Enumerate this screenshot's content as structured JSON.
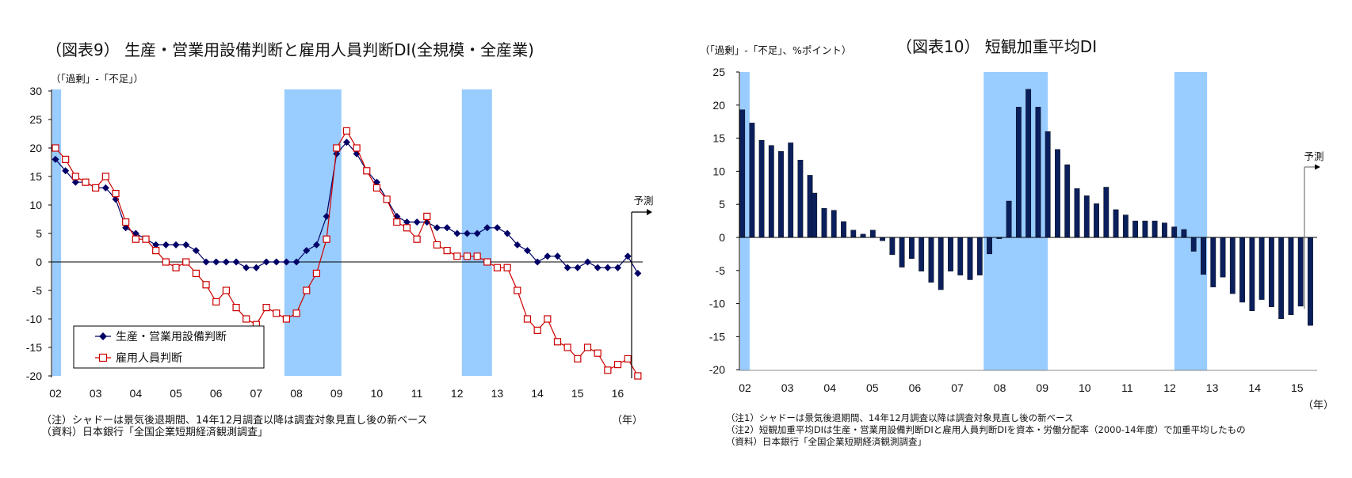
{
  "chart_data": [
    {
      "type": "line",
      "title": "（図表9） 生産・営業用設備判断と雇用人員判断DI(全規模・全産業)",
      "ylabel": "（「過剰」-「不足」）",
      "xlabel": "（年）",
      "ylim": [
        -20,
        30
      ],
      "yticks": [
        "30",
        "25",
        "20",
        "15",
        "10",
        "5",
        "0",
        "-5",
        "-10",
        "-15",
        "-20"
      ],
      "xticks": [
        "02",
        "03",
        "04",
        "05",
        "06",
        "07",
        "08",
        "09",
        "10",
        "11",
        "12",
        "13",
        "14",
        "15",
        "16"
      ],
      "x_start": "2002Q1",
      "frequency": "quarterly",
      "last_point_is_forecast": true,
      "forecast_label": "予測",
      "grid": false,
      "legend": "bottom-left",
      "shade_color": "#99ccff",
      "shaded_periods": [
        [
          2001.92,
          2002.14
        ],
        [
          2007.7,
          2009.12
        ],
        [
          2012.12,
          2012.87
        ]
      ],
      "series": [
        {
          "name": "生産・営業用設備判断",
          "color": "#000066",
          "marker": "diamond",
          "values": [
            18,
            16,
            14,
            14,
            13,
            13,
            11,
            6,
            5,
            4,
            3,
            3,
            3,
            3,
            2,
            0,
            0,
            0,
            0,
            -1,
            -1,
            0,
            0,
            0,
            0,
            2,
            3,
            8,
            19,
            21,
            19,
            16,
            14,
            11,
            8,
            7,
            7,
            7,
            6,
            6,
            5,
            5,
            5,
            6,
            6,
            5,
            3,
            2,
            0,
            1,
            1,
            -1,
            -1,
            0,
            -1,
            -1,
            -1,
            1,
            -2
          ]
        },
        {
          "name": "雇用人員判断",
          "color": "#cc0000",
          "marker": "open-square",
          "values": [
            20,
            18,
            15,
            14,
            13,
            15,
            12,
            7,
            4,
            4,
            2,
            0,
            -1,
            0,
            -2,
            -4,
            -7,
            -5,
            -8,
            -10,
            -11,
            -8,
            -9,
            -10,
            -9,
            -5,
            -2,
            4,
            20,
            23,
            20,
            16,
            13,
            11,
            7,
            6,
            4,
            8,
            3,
            2,
            1,
            1,
            1,
            0,
            -1,
            -1,
            -5,
            -10,
            -12,
            -10,
            -14,
            -15,
            -17,
            -15,
            -16,
            -19,
            -18,
            -17,
            -20
          ]
        }
      ],
      "notes": [
        "（注）シャドーは景気後退期間、14年12月調査以降は調査対象見直し後の新ベース",
        "（資料）日本銀行「全国企業短期経済観測調査」"
      ]
    },
    {
      "type": "bar",
      "title": "（図表10） 短観加重平均DI",
      "ylabel": "（「過剰」-「不足」、%ポイント）",
      "xlabel": "（年）",
      "ylim": [
        -20,
        25
      ],
      "yticks": [
        "25",
        "20",
        "15",
        "10",
        "5",
        "0",
        "-5",
        "-10",
        "-15",
        "-20"
      ],
      "xticks": [
        "02",
        "03",
        "04",
        "05",
        "06",
        "07",
        "08",
        "09",
        "10",
        "11",
        "12",
        "13",
        "14",
        "15"
      ],
      "frequency": "quarterly",
      "last_point_is_forecast": true,
      "forecast_label": "予測",
      "grid": false,
      "bar_color": "#0a1f5c",
      "shade_color": "#99ccff",
      "shaded_periods": [
        [
          2001.87,
          2002.11
        ],
        [
          2007.62,
          2009.13
        ],
        [
          2012.11,
          2012.88
        ]
      ],
      "values": [
        19.3,
        17.3,
        14.7,
        13.9,
        13.0,
        14.3,
        11.7,
        9.4,
        6.7,
        4.4,
        4.1,
        2.4,
        1.1,
        0.5,
        1.1,
        -0.5,
        -2.6,
        -4.5,
        -3.2,
        -5.1,
        -6.8,
        -7.9,
        -5.1,
        -5.7,
        -6.4,
        -5.7,
        -2.5,
        -0.2,
        5.5,
        19.7,
        22.4,
        19.7,
        16.0,
        13.3,
        11.0,
        7.4,
        6.3,
        5.1,
        7.6,
        4.2,
        3.4,
        2.5,
        2.5,
        2.5,
        2.2,
        1.6,
        1.2,
        -2.1,
        -5.6,
        -7.5,
        -6.0,
        -8.5,
        -9.8,
        -11.1,
        -9.4,
        -10.5,
        -12.3,
        -11.7,
        -10.4,
        -13.3
      ],
      "notes": [
        "（注1）シャドーは景気後退期間、14年12月調査以降は調査対象見直し後の新ベース",
        "（注2）短観加重平均DIは生産・営業用設備判断DIと雇用人員判断DIを資本・労働分配率（2000-14年度）で加重平均したもの",
        "（資料）日本銀行「全国企業短期経済観測調査」"
      ]
    }
  ]
}
